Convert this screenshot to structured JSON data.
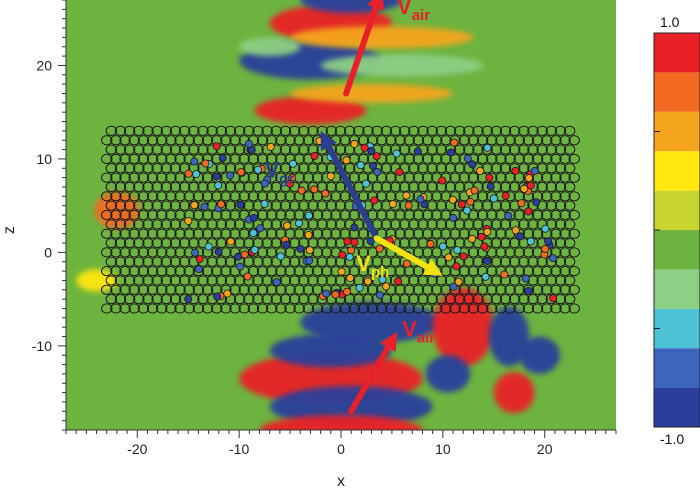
{
  "chart_data": {
    "type": "heatmap",
    "title": "",
    "xlabel": "x",
    "ylabel": "z",
    "xlim": [
      -27,
      27
    ],
    "ylim": [
      -19,
      27
    ],
    "xticks": [
      -20,
      -10,
      0,
      10,
      20
    ],
    "yticks": [
      -10,
      0,
      10,
      20
    ],
    "xtick_labels": [
      "-20",
      "-10",
      "0",
      "10",
      "20"
    ],
    "ytick_labels": [
      "-10",
      "0",
      "10",
      "20"
    ],
    "grid": false,
    "colorbar": {
      "min": -1.0,
      "max": 1.0,
      "max_label": "1.0",
      "min_label": "-1.0",
      "levels": [
        "#2a3f9b",
        "#3c66bd",
        "#4fc3d6",
        "#8dcf84",
        "#6db33f",
        "#c8d530",
        "#ffe60f",
        "#f5a51c",
        "#f26a21",
        "#ea2027"
      ]
    },
    "background_color": "#6db33f",
    "lattice": {
      "x_range": [
        -23,
        23
      ],
      "z_range": [
        -6,
        13
      ],
      "circle_color": "#1a1a1a"
    },
    "vectors": [
      {
        "label": "V",
        "sub": "air",
        "from": [
          0.5,
          17
        ],
        "to": [
          4,
          28
        ],
        "color": "#e8202a"
      },
      {
        "label": "V",
        "sub": "gr",
        "from": [
          3.5,
          1.5
        ],
        "to": [
          -2,
          13
        ],
        "color": "#2c3e8f"
      },
      {
        "label": "V",
        "sub": "ph",
        "from": [
          3.5,
          1.5
        ],
        "to": [
          10,
          -2.5
        ],
        "color": "#f2e20f"
      },
      {
        "label": "V",
        "sub": "air",
        "from": [
          1,
          -17
        ],
        "to": [
          5.5,
          -8.5
        ],
        "color": "#e8202a"
      }
    ],
    "annotations": [
      {
        "text": "Vair",
        "main": "V",
        "sub": "air",
        "at": [
          5.5,
          25.5
        ],
        "color": "#e8202a"
      },
      {
        "text": "Vgr",
        "main": "V",
        "sub": "gr",
        "at": [
          -7.5,
          8
        ],
        "color": "#2c3e8f"
      },
      {
        "text": "Vph",
        "main": "V",
        "sub": "ph",
        "at": [
          1.5,
          -2
        ],
        "color": "#f2e20f"
      },
      {
        "text": "Vair",
        "main": "V",
        "sub": "air",
        "at": [
          6,
          -9
        ],
        "color": "#e8202a"
      }
    ]
  }
}
